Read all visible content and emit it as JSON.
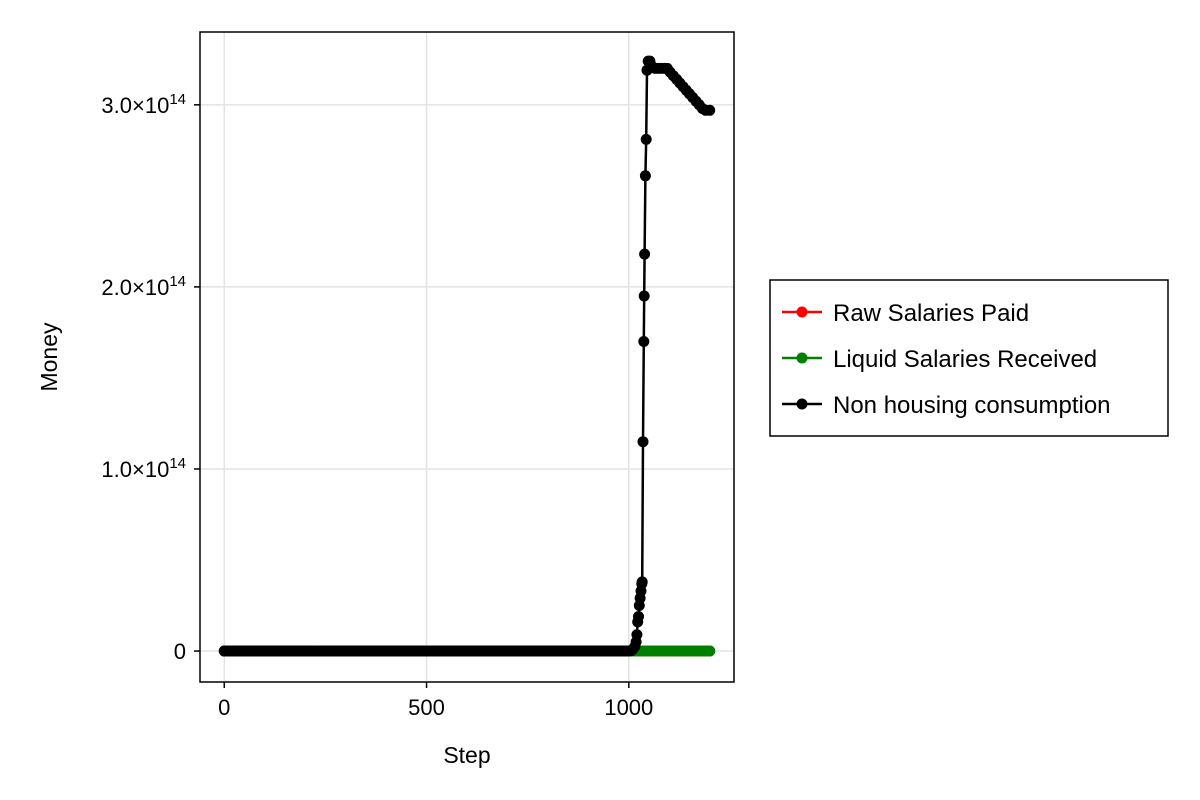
{
  "chart_data": {
    "type": "scatter",
    "title": "",
    "xlabel": "Step",
    "ylabel": "Money",
    "xlim": [
      -60,
      1260
    ],
    "ylim": [
      -17000000000000.0,
      340000000000000.0
    ],
    "x_ticks": [
      0,
      500,
      1000
    ],
    "x_tick_labels": [
      "0",
      "500",
      "1000"
    ],
    "y_ticks": [
      0,
      100000000000000.0,
      200000000000000.0,
      300000000000000.0
    ],
    "y_tick_labels": [
      {
        "mantissa": "0",
        "exp": ""
      },
      {
        "mantissa": "1.0×10",
        "exp": "14"
      },
      {
        "mantissa": "2.0×10",
        "exp": "14"
      },
      {
        "mantissa": "3.0×10",
        "exp": "14"
      }
    ],
    "grid": true,
    "legend_position": "right",
    "series": [
      {
        "name": "Raw Salaries Paid",
        "color": "#ff0000",
        "x_start": 0,
        "x_end": 1200,
        "x_step": 10,
        "values_note": "flat",
        "points": [
          [
            0,
            0
          ],
          [
            1200,
            0
          ]
        ]
      },
      {
        "name": "Liquid Salaries Received",
        "color": "#008000",
        "points": [
          [
            0,
            0
          ],
          [
            1200,
            0
          ]
        ]
      },
      {
        "name": "Non housing consumption",
        "color": "#000000",
        "points": [
          [
            1000,
            0
          ],
          [
            1005,
            200000000000.0
          ],
          [
            1010,
            1000000000000.0
          ],
          [
            1015,
            2500000000000.0
          ],
          [
            1018,
            5000000000000.0
          ],
          [
            1020,
            9000000000000.0
          ],
          [
            1022,
            16000000000000.0
          ],
          [
            1024,
            19000000000000.0
          ],
          [
            1026,
            25000000000000.0
          ],
          [
            1028,
            29000000000000.0
          ],
          [
            1030,
            33000000000000.0
          ],
          [
            1032,
            37000000000000.0
          ],
          [
            1033,
            38000000000000.0
          ],
          [
            1035,
            115000000000000.0
          ],
          [
            1037,
            170000000000000.0
          ],
          [
            1038,
            195000000000000.0
          ],
          [
            1039,
            218000000000000.0
          ],
          [
            1041,
            261000000000000.0
          ],
          [
            1043,
            281000000000000.0
          ],
          [
            1045,
            319000000000000.0
          ],
          [
            1048,
            324000000000000.0
          ],
          [
            1052,
            324000000000000.0
          ],
          [
            1058,
            321000000000000.0
          ],
          [
            1065,
            320000000000000.0
          ],
          [
            1072,
            320000000000000.0
          ],
          [
            1080,
            320000000000000.0
          ],
          [
            1088,
            320000000000000.0
          ],
          [
            1095,
            320000000000000.0
          ],
          [
            1102,
            318000000000000.0
          ],
          [
            1110,
            316000000000000.0
          ],
          [
            1118,
            314000000000000.0
          ],
          [
            1126,
            312000000000000.0
          ],
          [
            1134,
            310000000000000.0
          ],
          [
            1142,
            308000000000000.0
          ],
          [
            1150,
            306000000000000.0
          ],
          [
            1158,
            304000000000000.0
          ],
          [
            1166,
            302000000000000.0
          ],
          [
            1174,
            300000000000000.0
          ],
          [
            1182,
            298000000000000.0
          ],
          [
            1190,
            297000000000000.0
          ],
          [
            1200,
            297000000000000.0
          ]
        ]
      }
    ]
  }
}
